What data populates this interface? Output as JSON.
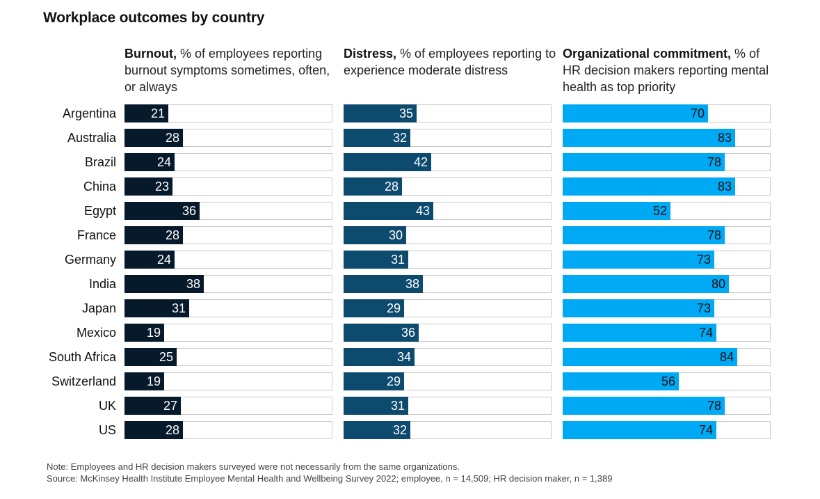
{
  "title": "Workplace outcomes by country",
  "columns": [
    {
      "bold": "Burnout,",
      "rest": " % of employees reporting burnout symptoms sometimes, often, or always"
    },
    {
      "bold": "Distress,",
      "rest": " % of employees reporting to experience moderate distress"
    },
    {
      "bold": "Organizational commitment,",
      "rest": " % of HR decision makers reporting mental health as top priority"
    }
  ],
  "chart_data": {
    "type": "bar",
    "title": "Workplace outcomes by country",
    "categories": [
      "Argentina",
      "Australia",
      "Brazil",
      "China",
      "Egypt",
      "France",
      "Germany",
      "India",
      "Japan",
      "Mexico",
      "South Africa",
      "Switzerland",
      "UK",
      "US"
    ],
    "xlim": [
      0,
      100
    ],
    "series": [
      {
        "name": "Burnout, % of employees reporting burnout symptoms sometimes, often, or always",
        "color": "#061a2c",
        "values": [
          21,
          28,
          24,
          23,
          36,
          28,
          24,
          38,
          31,
          19,
          25,
          19,
          27,
          28
        ]
      },
      {
        "name": "Distress, % of employees reporting to experience moderate distress",
        "color": "#0c4a6e",
        "values": [
          35,
          32,
          42,
          28,
          43,
          30,
          31,
          38,
          29,
          36,
          34,
          29,
          31,
          32
        ]
      },
      {
        "name": "Organizational commitment, % of HR decision makers reporting mental health as top priority",
        "color": "#00a9f4",
        "values": [
          70,
          83,
          78,
          83,
          52,
          78,
          73,
          80,
          73,
          74,
          84,
          56,
          78,
          74
        ]
      }
    ]
  },
  "note": "Note: Employees and HR decision makers surveyed were not necessarily from the same organizations.",
  "source": "Source: McKinsey Health Institute Employee Mental Health and Wellbeing Survey 2022; employee, n = 14,509; HR decision maker, n = 1,389"
}
